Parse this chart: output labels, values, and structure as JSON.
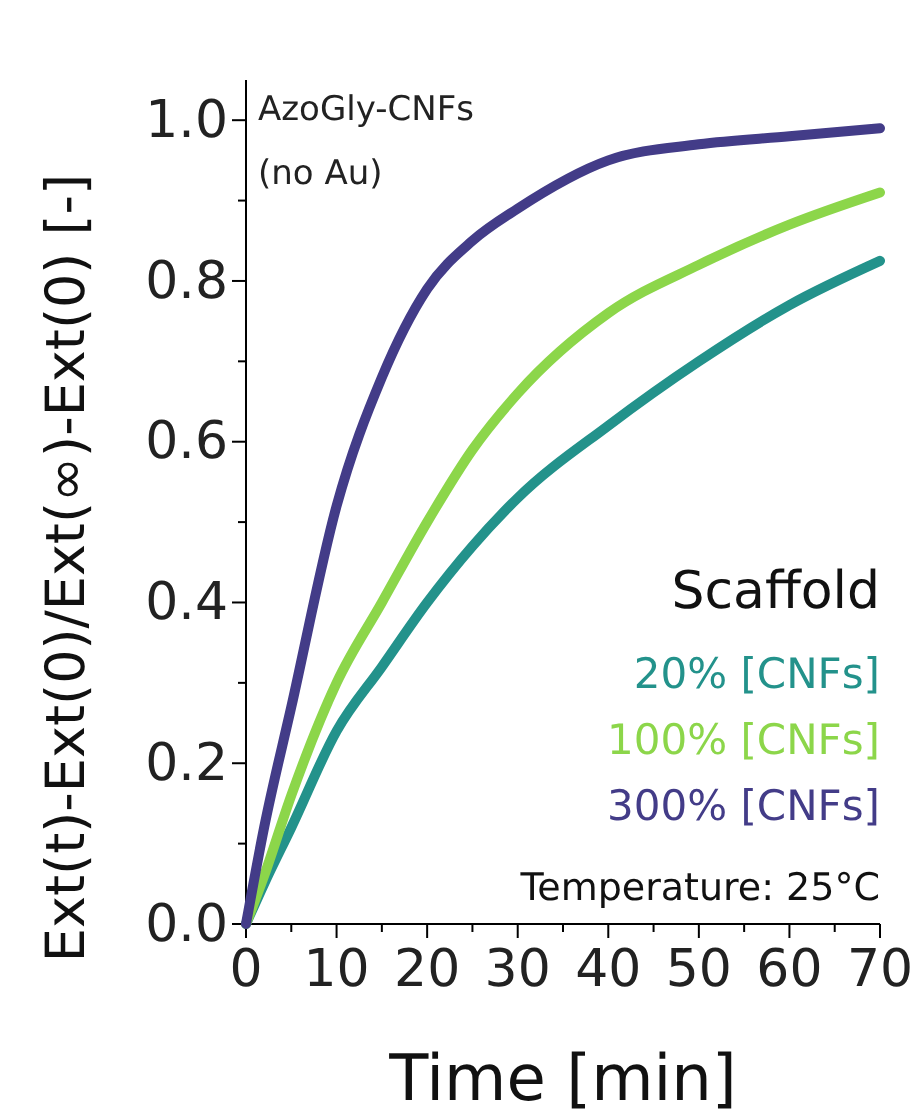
{
  "chart_data": {
    "type": "line",
    "xlabel": "Time [min]",
    "ylabel": "Ext(t)-Ext(0)/Ext(∞)-Ext(0) [-]",
    "legend_title": "Scaffold",
    "legend": "bottom right",
    "marker": "none",
    "line_style": "solid",
    "grid": false,
    "annotations": [
      "AzoGly-CNFs\n(no Au)",
      "Temperature: 25°C"
    ],
    "x": [
      0,
      2,
      5,
      10,
      15,
      20,
      25,
      30,
      40,
      50,
      60,
      70
    ],
    "xlim": [
      0,
      70
    ],
    "ylim": [
      0,
      1.05
    ],
    "xticks": [
      0,
      {
        "value": 5,
        "label": null
      },
      10,
      {
        "value": 15,
        "label": null
      },
      20,
      {
        "value": 25,
        "label": null
      },
      30,
      {
        "value": 35,
        "label": null
      },
      40,
      {
        "value": 45,
        "label": null
      },
      50,
      {
        "value": 55,
        "label": null
      },
      60,
      {
        "value": 65,
        "label": null
      },
      70
    ],
    "yticks": [
      {
        "value": 0,
        "label": "0.0"
      },
      {
        "value": 0.1,
        "label": null
      },
      {
        "value": 0.2,
        "label": "0.2"
      },
      {
        "value": 0.3,
        "label": null
      },
      {
        "value": 0.4,
        "label": "0.4"
      },
      {
        "value": 0.5,
        "label": null
      },
      {
        "value": 0.6,
        "label": "0.6"
      },
      {
        "value": 0.7,
        "label": null
      },
      {
        "value": 0.8,
        "label": "0.8"
      },
      {
        "value": 0.9,
        "label": null
      },
      {
        "value": 1,
        "label": "1.0"
      }
    ],
    "series": [
      {
        "name": "20% [CNFs]",
        "color": "#23928b",
        "values": [
          0,
          0.05,
          0.12,
          0.24,
          0.32,
          0.4,
          0.47,
          0.53,
          0.62,
          0.7,
          0.77,
          0.825
        ]
      },
      {
        "name": "100% [CNFs]",
        "color": "#8cd64a",
        "values": [
          0,
          0.06,
          0.16,
          0.3,
          0.4,
          0.5,
          0.59,
          0.66,
          0.76,
          0.82,
          0.87,
          0.91
        ]
      },
      {
        "name": "300% [CNFs]",
        "color": "#433c88",
        "values": [
          0,
          0.12,
          0.27,
          0.52,
          0.68,
          0.79,
          0.85,
          0.89,
          0.95,
          0.97,
          0.98,
          0.99
        ]
      }
    ]
  }
}
